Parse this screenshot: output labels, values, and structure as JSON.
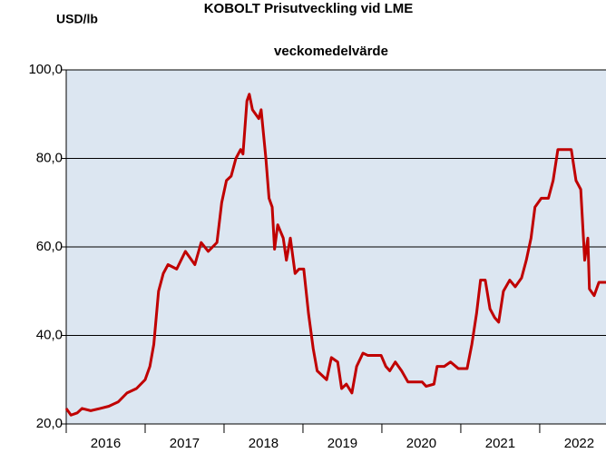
{
  "chart_data": {
    "type": "line",
    "title": "KOBOLT  Prisutveckling vid LME",
    "subtitle": "veckomedelvärde",
    "y_label": "USD/lb",
    "x": [
      2016.0,
      2016.06,
      2016.14,
      2016.2,
      2016.31,
      2016.43,
      2016.54,
      2016.66,
      2016.77,
      2016.89,
      2017.0,
      2017.06,
      2017.11,
      2017.17,
      2017.23,
      2017.29,
      2017.4,
      2017.51,
      2017.63,
      2017.71,
      2017.8,
      2017.91,
      2017.97,
      2018.03,
      2018.09,
      2018.15,
      2018.21,
      2018.24,
      2018.29,
      2018.32,
      2018.36,
      2018.44,
      2018.47,
      2018.53,
      2018.57,
      2018.61,
      2018.64,
      2018.68,
      2018.75,
      2018.79,
      2018.84,
      2018.9,
      2018.95,
      2019.01,
      2019.07,
      2019.13,
      2019.18,
      2019.24,
      2019.3,
      2019.36,
      2019.44,
      2019.49,
      2019.55,
      2019.62,
      2019.68,
      2019.76,
      2019.82,
      2019.99,
      2020.05,
      2020.1,
      2020.17,
      2020.25,
      2020.33,
      2020.51,
      2020.56,
      2020.66,
      2020.7,
      2020.79,
      2020.87,
      2020.97,
      2021.08,
      2021.14,
      2021.2,
      2021.25,
      2021.31,
      2021.37,
      2021.43,
      2021.48,
      2021.54,
      2021.62,
      2021.69,
      2021.77,
      2021.83,
      2021.89,
      2021.94,
      2022.02,
      2022.11,
      2022.17,
      2022.23,
      2022.29,
      2022.4,
      2022.46,
      2022.52,
      2022.57,
      2022.61,
      2022.63,
      2022.69,
      2022.75,
      2022.84
    ],
    "series": [
      {
        "name": "Kobolt",
        "color": "#c00000",
        "values": [
          23.5,
          22,
          22.5,
          23.5,
          23,
          23.5,
          24,
          25,
          27,
          28,
          30,
          33,
          38,
          50,
          54,
          56,
          55,
          59,
          56,
          61,
          59,
          61,
          70,
          75,
          76,
          80,
          82,
          81,
          93,
          94.5,
          91,
          89,
          91,
          80,
          71,
          69,
          59.5,
          65,
          62,
          57,
          62,
          54,
          55,
          55,
          45,
          37,
          32,
          31,
          30,
          35,
          34,
          28,
          29,
          27,
          33,
          36,
          35.5,
          35.5,
          33,
          32,
          34,
          32,
          29.5,
          29.5,
          28.5,
          29,
          33,
          33,
          34,
          32.5,
          32.5,
          38,
          45,
          52.5,
          52.5,
          46,
          44,
          43,
          50,
          52.5,
          51,
          53,
          57,
          62,
          69,
          71,
          71,
          75,
          82,
          82,
          82,
          75,
          73,
          57,
          62,
          50.5,
          49,
          52,
          52
        ]
      }
    ],
    "xlim": [
      2016,
      2022.84
    ],
    "xticks": [
      2016,
      2017,
      2018,
      2019,
      2020,
      2021,
      2022
    ],
    "ylim": [
      20,
      100
    ],
    "yticks": [
      {
        "value": 20,
        "label": "20,0"
      },
      {
        "value": 40,
        "label": "40,0"
      },
      {
        "value": 60,
        "label": "60,0"
      },
      {
        "value": 80,
        "label": "80,0"
      },
      {
        "value": 100,
        "label": "100,0"
      }
    ],
    "grid": true,
    "background": "#dce6f1"
  }
}
